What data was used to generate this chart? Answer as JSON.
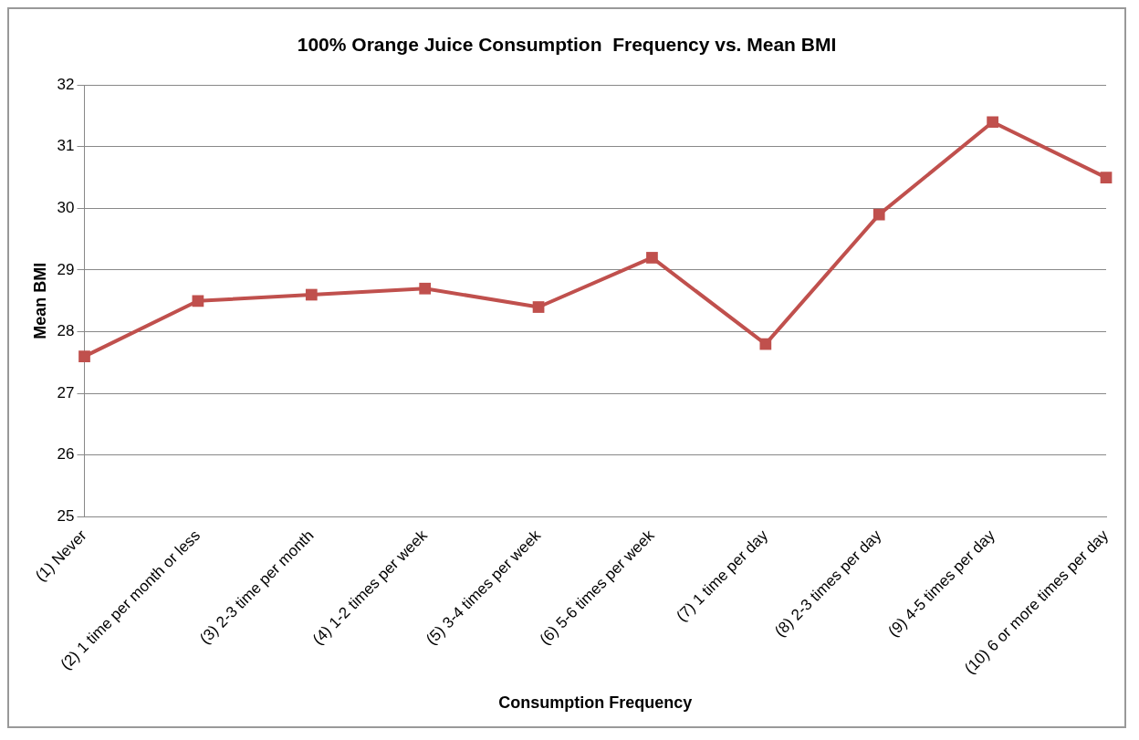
{
  "chart_data": {
    "type": "line",
    "title": "100% Orange Juice Consumption  Frequency vs. Mean BMI",
    "xlabel": "Consumption Frequency",
    "ylabel": "Mean BMI",
    "categories": [
      "(1) Never",
      "(2) 1 time per month or less",
      "(3) 2-3 time per month",
      "(4) 1-2 times per week",
      "(5) 3-4 times per week",
      "(6) 5-6 times per week",
      "(7) 1 time per day",
      "(8) 2-3 times per day",
      "(9) 4-5 times per day",
      "(10) 6 or more times per day"
    ],
    "series": [
      {
        "color": "#c0504d",
        "values": [
          27.6,
          28.5,
          28.6,
          28.7,
          28.4,
          29.2,
          27.8,
          29.9,
          31.4,
          30.5
        ]
      }
    ],
    "ylim": [
      25,
      32
    ],
    "yticks": [
      25,
      26,
      27,
      28,
      29,
      30,
      31,
      32
    ],
    "grid": "y",
    "legend": false,
    "marker": "square",
    "line_style": "solid"
  }
}
